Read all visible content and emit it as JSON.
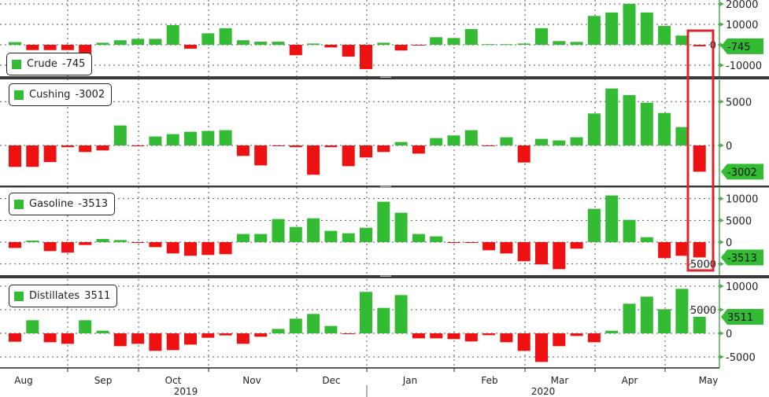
{
  "colors": {
    "positive": "#33bb33",
    "negative": "#ee1111",
    "highlight": "#d9262e",
    "axis": "#4caf50",
    "separator": "#3a3a3a"
  },
  "x_axis": {
    "months": [
      "Aug",
      "Sep",
      "Oct",
      "Nov",
      "Dec",
      "Jan",
      "Feb",
      "Mar",
      "Apr",
      "May"
    ],
    "years": [
      "2019",
      "2020"
    ]
  },
  "chart_data": [
    {
      "type": "bar",
      "name": "Crude",
      "last_value": "-745",
      "ylim": [
        -15400,
        21900
      ],
      "yticks": [
        20000,
        10000,
        0,
        -10000
      ],
      "grid": true,
      "values": [
        1300,
        -2600,
        -2600,
        -2600,
        -7300,
        1000,
        2200,
        2900,
        2900,
        9600,
        -1900,
        5600,
        8100,
        2200,
        1500,
        1500,
        -5100,
        600,
        -1300,
        -5800,
        -11900,
        1000,
        -2800,
        -300,
        3700,
        3300,
        7700,
        300,
        300,
        600,
        8100,
        1800,
        1400,
        14100,
        15800,
        20000,
        15800,
        9200,
        4500,
        -745
      ]
    },
    {
      "type": "bar",
      "name": "Cushing",
      "last_value": "-3002",
      "ylim": [
        -4580,
        7630
      ],
      "yticks": [
        5000,
        0
      ],
      "grid": true,
      "values": [
        -2450,
        -2450,
        -1900,
        -200,
        -750,
        -570,
        2280,
        -100,
        1020,
        1290,
        1560,
        1650,
        1740,
        -1200,
        -2280,
        -60,
        -200,
        -3350,
        -200,
        -2370,
        -1380,
        -750,
        390,
        -930,
        840,
        1140,
        1740,
        -50,
        930,
        -1950,
        750,
        570,
        930,
        3650,
        6500,
        5750,
        4880,
        3710,
        2100,
        -3002
      ]
    },
    {
      "type": "bar",
      "name": "Gasoline",
      "last_value": "-3513",
      "ylim": [
        -7580,
        12640
      ],
      "yticks": [
        10000,
        5000,
        0,
        -5000
      ],
      "grid": true,
      "values": [
        -1330,
        360,
        -2050,
        -2400,
        -660,
        720,
        480,
        -50,
        -1140,
        -2600,
        -3130,
        -2950,
        -2770,
        1870,
        1870,
        5300,
        3490,
        5480,
        2590,
        2050,
        3310,
        9280,
        6750,
        1870,
        1330,
        -50,
        -50,
        -1870,
        -2600,
        -4400,
        -5120,
        -6200,
        -1500,
        7650,
        10720,
        5120,
        1140,
        -3670,
        -3130,
        -3513
      ]
    },
    {
      "type": "bar",
      "name": "Distillates",
      "last_value": "3511",
      "ylim": [
        -7330,
        11500
      ],
      "yticks": [
        10000,
        5000,
        0,
        -5000
      ],
      "grid": true,
      "values": [
        -1780,
        2780,
        -1890,
        -2220,
        2780,
        560,
        -2720,
        -2220,
        -3720,
        -3560,
        -2390,
        -940,
        -440,
        -2220,
        -720,
        940,
        3110,
        4110,
        1560,
        -50,
        8780,
        5390,
        8110,
        -1060,
        -1060,
        -1220,
        -1720,
        -390,
        -1890,
        -3720,
        -6060,
        -2720,
        -560,
        -1890,
        560,
        6280,
        7780,
        5110,
        9440,
        3511
      ]
    }
  ]
}
